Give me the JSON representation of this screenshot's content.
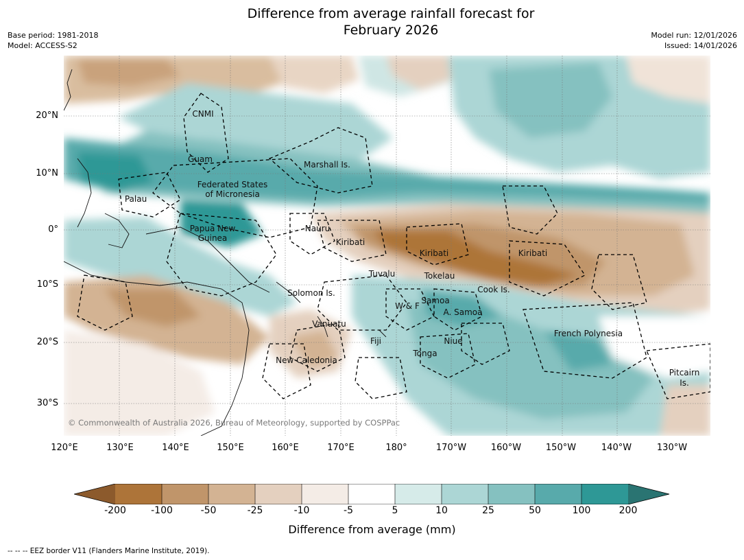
{
  "header": {
    "title_line1": "Difference from average rainfall forecast for",
    "title_line2": "February 2026",
    "base_period": "Base period: 1981-2018",
    "model": "Model: ACCESS-S2",
    "model_run": "Model run: 12/01/2026",
    "issued": "Issued: 14/01/2026"
  },
  "map": {
    "lat_labels": [
      "20°N",
      "10°N",
      "0°",
      "10°S",
      "20°S",
      "30°S"
    ],
    "lon_labels": [
      "120°E",
      "130°E",
      "140°E",
      "150°E",
      "160°E",
      "170°E",
      "180°",
      "170°W",
      "160°W",
      "150°W",
      "140°W",
      "130°W"
    ],
    "regions": {
      "cnmi": "CNMI",
      "guam": "Guam",
      "marshall": "Marshall Is.",
      "fsm_1": "Federated States",
      "fsm_2": "of Micronesia",
      "palau": "Palau",
      "png_1": "Papua New",
      "png_2": "Guinea",
      "nauru": "Nauru",
      "kiribati_w": "Kiribati",
      "kiribati_c": "Kiribati",
      "kiribati_e": "Kiribati",
      "tuvalu": "Tuvalu",
      "tokelau": "Tokelau",
      "cook": "Cook Is.",
      "solomon": "Solomon Is.",
      "wf": "W & F",
      "samoa": "Samoa",
      "asamoa": "A. Samoa",
      "vanuatu": "Vanuatu",
      "fiji": "Fiji",
      "niue": "Niue",
      "tonga": "Tonga",
      "frenchpoly": "French Polynesia",
      "newcal": "New Caledonia",
      "pitcairn_1": "Pitcairn",
      "pitcairn_2": "Is."
    },
    "copyright": "© Commonwealth of Australia 2026, Bureau of Meteorology, supported by COSPPac"
  },
  "colorbar": {
    "title": "Difference from average (mm)",
    "ticks": [
      "-200",
      "-100",
      "-50",
      "-25",
      "-10",
      "-5",
      "5",
      "10",
      "25",
      "50",
      "100",
      "200"
    ],
    "colors": {
      "under": "#8c5a2c",
      "bins": [
        "#ad7439",
        "#c0956a",
        "#d3b393",
        "#e4d0bf",
        "#f4ece6",
        "#ffffff",
        "#d6ebe9",
        "#acd6d5",
        "#85c1c0",
        "#58aaab",
        "#2e9896"
      ],
      "over": "#2a7472"
    }
  },
  "footer": {
    "eez": "--  --  -- EEZ border V11 (Flanders Marine Institute, 2019)."
  }
}
